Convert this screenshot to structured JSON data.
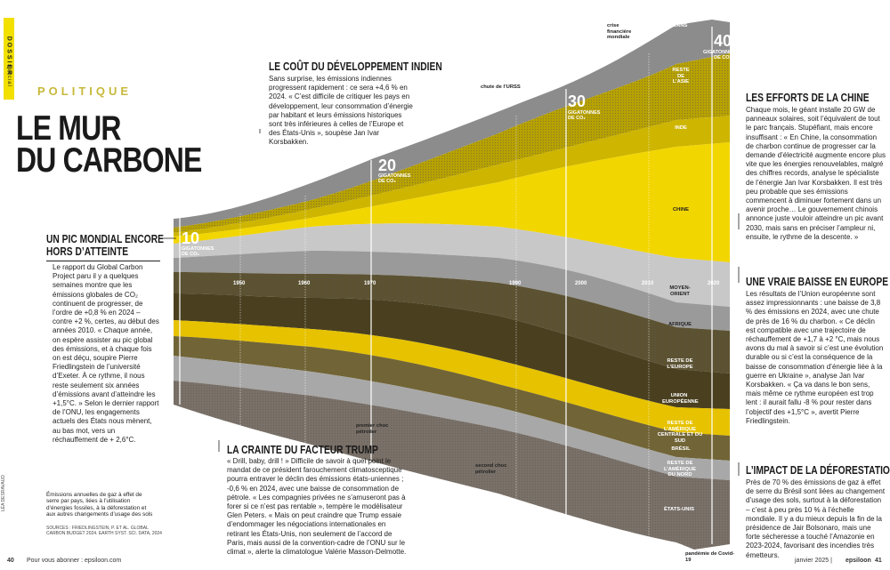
{
  "header": {
    "tag_top": "DOSSIER",
    "tag_bottom": "spécial",
    "rubric": "POLITIQUE",
    "title_line1": "LE MUR",
    "title_line2": "DU CARBONE"
  },
  "sections": {
    "pic": {
      "title_line1": "UN PIC MONDIAL ENCORE",
      "title_line2": "HORS D’ATTEINTE",
      "body": "Le rapport du Global Carbon Project paru il y a quelques semaines montre que les émissions globales de CO₂ continuent de progresser, de l’ordre de +0,8 % en 2024 – contre +2 %, certes, au début des années 2010. « Chaque année, on espère assister au pic global des émissions, et à chaque fois on est déçu, soupire Pierre Friedlingstein de l’université d’Exeter. À ce rythme, il nous reste seulement six années d’émissions avant d’atteindre les +1,5°C. » Selon le dernier rapport de l’ONU, les engagements actuels des États nous mènent, au bas mot, vers un réchauffement de + 2,6°C."
    },
    "inde": {
      "title": "LE COÛT DU DÉVELOPPEMENT INDIEN",
      "body": "Sans surprise, les émissions indiennes progressent rapidement : ce sera +4,6 % en 2024. « C’est difficile de critiquer les pays en développement, leur consommation d’énergie par habitant et leurs émissions historiques sont très inférieures à celles de l’Europe et des États-Unis », soupèse Jan Ivar Korsbakken."
    },
    "chine": {
      "title": "LES EFFORTS DE LA CHINE",
      "body": "Chaque mois, le géant installe 20 GW de panneaux solaires, soit l’équivalent de tout le parc français. Stupéfiant, mais encore insuffisant : « En Chine, la consommation de charbon continue de progresser car la demande d’électricité augmente encore plus vite que les énergies renouvelables, malgré des chiffres records, analyse le spécialiste de l’énergie Jan Ivar Korsbakken. Il est très peu probable que ses émissions commencent à diminuer fortement dans un avenir proche… Le gouvernement chinois annonce juste vouloir atteindre un pic avant 2030, mais sans en préciser l’ampleur ni, ensuite, le rythme de la descente. »"
    },
    "europe": {
      "title": "UNE VRAIE BAISSE EN EUROPE ?",
      "body": "Les résultats de l’Union européenne sont assez impressionnants : une baisse de 3,8 % des émissions en 2024, avec une chute de près de 16 % du charbon. « Ce déclin est compatible avec une trajectoire de réchauffement de +1,7 à +2 °C, mais nous avons du mal à savoir si c’est une évolution durable ou si c’est la conséquence de la baisse de consommation d’énergie liée à la guerre en Ukraine », analyse Jan Ivar Korsbakken. « Ça va dans le bon sens, mais même ce rythme européen est trop lent : il aurait fallu -8 % pour rester dans l’objectif des +1,5°C », avertit Pierre Friedlingstein."
    },
    "trump": {
      "title": "LA CRAINTE DU FACTEUR TRUMP",
      "body": "« Drill, baby, drill ! » Difficile de savoir à quel point le mandat de ce président farouchement climatosceptique pourra entraver le déclin des émissions états-uniennes ; -0,6 % en 2024, avec une baisse de consommation de pétrole. « Les compagnies privées ne s’amuseront pas à forer si ce n’est pas rentable », tempère le modélisateur Glen Peters. « Mais on peut craindre que Trump essaie d’endommager les négociations internationales en retirant les États-Unis, non seulement de l’accord de Paris, mais aussi de la convention-cadre de l’ONU sur le climat », alerte la climatologue Valérie Masson-Delmotte."
    },
    "deforestation": {
      "title": "L’IMPACT DE LA DÉFORESTATION",
      "body": "Près de 70 % des émissions de gaz à effet de serre du Brésil sont liées au changement d’usage des sols, surtout à la déforestation – c’est à peu près 10 % à l’échelle mondiale. Il y a du mieux depuis la fin de la présidence de Jair Bolsonaro, mais une forte sécheresse a touché l’Amazonie en 2023-2024, favorisant des incendies très émetteurs."
    }
  },
  "chart_data": {
    "type": "area",
    "title": "",
    "xlabel": "",
    "ylabel": "",
    "x_ticks": [
      "1950",
      "1960",
      "1970",
      "1990",
      "2000",
      "2010",
      "2020"
    ],
    "gigatonne_markers": [
      {
        "value": "10",
        "unit": "GIGATONNES DE CO₂"
      },
      {
        "value": "20",
        "unit": "GIGATONNES DE CO₂"
      },
      {
        "value": "30",
        "unit": "GIGATONNES DE CO₂"
      },
      {
        "value": "40",
        "unit": "GIGATONNES DE CO₂"
      }
    ],
    "series_labels": [
      "OCÉANS",
      "RESTE DE L’ASIE",
      "INDE",
      "CHINE",
      "MOYEN-ORIENT",
      "AFRIQUE",
      "RESTE DE L’EUROPE",
      "UNION EUROPÉENNE",
      "RESTE DE L’AMÉRIQUE CENTRALE ET DU SUD",
      "BRÉSIL",
      "RESTE DE L’AMÉRIQUE DU NORD",
      "ÉTATS-UNIS"
    ],
    "series_colors": [
      "#8c8c8c",
      "#b8a200",
      "#cdb500",
      "#f2d600",
      "#c8c8c8",
      "#9a9a9a",
      "#5c5230",
      "#4a4020",
      "#e6c200",
      "#716436",
      "#a8a8a8",
      "#7a7168"
    ],
    "annotations": [
      "crise financière mondiale",
      "chute de l’URSS",
      "premier choc pétrolier",
      "second choc pétrolier",
      "pandémie de Covid-19"
    ]
  },
  "source": {
    "caption": "Émissions annuelles de gaz à effet de serre par pays, liées à l’utilisation d’énergies fossiles, à la déforestation et aux autres changements d’usage des sols",
    "sources": "SOURCES : FRIEDLINGSTEIN, P. ET AL. GLOBAL CARBON BUDGET 2024. EARTH SYST. SCI. DATA, 2024",
    "credit": "LÉA DESRAVAUD"
  },
  "footer": {
    "left_page": "40",
    "left_text": "Pour vous abonner : epsiloon.com",
    "right_text": "janvier 2025 |",
    "brand": "epsiloon",
    "right_page": "41"
  }
}
